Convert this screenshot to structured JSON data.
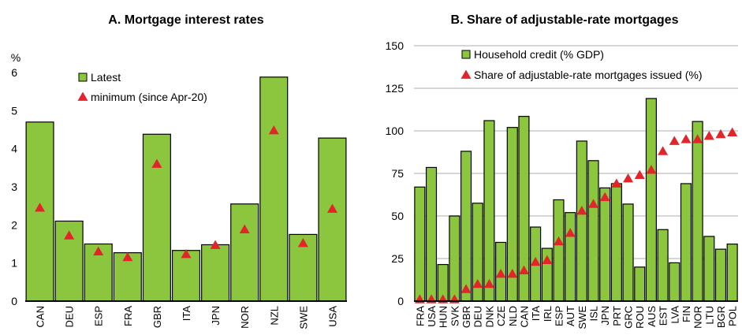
{
  "colors": {
    "bar": "#8cc63f",
    "marker": "#e3242b",
    "grid": "#c8c8c8"
  },
  "chart_data": [
    {
      "type": "bar",
      "title": "A. Mortgage interest rates",
      "ylabel": "%",
      "ylim": [
        0,
        6
      ],
      "yticks": [
        0,
        1,
        2,
        3,
        4,
        5,
        6
      ],
      "categories": [
        "CAN",
        "DEU",
        "ESP",
        "FRA",
        "GBR",
        "ITA",
        "JPN",
        "NOR",
        "NZL",
        "SWE",
        "USA"
      ],
      "legend_position": "top-left",
      "series": [
        {
          "name": "Latest",
          "kind": "bar",
          "values": [
            4.7,
            2.1,
            1.5,
            1.27,
            4.38,
            1.33,
            1.48,
            2.55,
            5.88,
            1.75,
            4.28
          ]
        },
        {
          "name": "minimum (since Apr-20)",
          "kind": "marker",
          "values": [
            2.45,
            1.72,
            1.3,
            1.15,
            3.6,
            1.23,
            1.47,
            1.88,
            4.48,
            1.52,
            2.42
          ]
        }
      ]
    },
    {
      "type": "bar",
      "title": "B. Share of adjustable-rate mortgages",
      "ylabel": "",
      "ylim": [
        0,
        150
      ],
      "yticks": [
        0,
        25,
        50,
        75,
        100,
        125,
        150
      ],
      "categories": [
        "FRA",
        "USA",
        "HUN",
        "SVK",
        "GBR",
        "DEU",
        "DNK",
        "CZE",
        "NLD",
        "CAN",
        "ITA",
        "IRL",
        "ESP",
        "AUT",
        "SWE",
        "ISL",
        "JPN",
        "PRT",
        "GRC",
        "ROU",
        "AUS",
        "EST",
        "LVA",
        "FIN",
        "NOR",
        "LTU",
        "BGR",
        "POL"
      ],
      "legend_position": "top",
      "series": [
        {
          "name": "Household credit (% GDP)",
          "kind": "bar",
          "values": [
            67,
            78.5,
            21.5,
            50,
            88,
            57.5,
            106,
            34.5,
            102,
            108.5,
            43.5,
            31,
            59.5,
            52,
            94,
            82.5,
            66.5,
            69,
            57,
            20,
            119,
            42,
            22.5,
            69,
            105.5,
            38,
            30.5,
            33.5
          ]
        },
        {
          "name": "Share of adjustable-rate mortgages issued (%)",
          "kind": "marker",
          "values": [
            1,
            1,
            1,
            1,
            7,
            10,
            10,
            16,
            16,
            18,
            23,
            24,
            35,
            40,
            53,
            57,
            61,
            69,
            72,
            74,
            77,
            88,
            94,
            95,
            95,
            97,
            98,
            99
          ]
        }
      ]
    }
  ]
}
